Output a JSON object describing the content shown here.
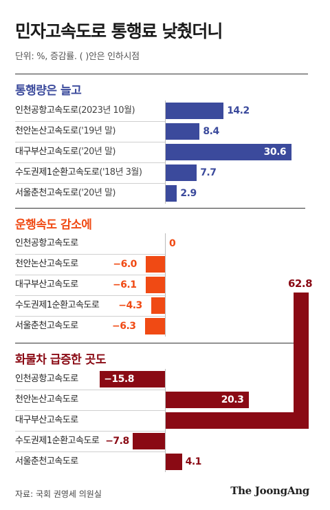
{
  "title": "민자고속도로 통행료 낮췄더니",
  "unit_note": "단위: %, 증감률. ( )안은 인하시점",
  "source": "자료: 국회 권영세 의원실",
  "logo": "The JoongAng",
  "colors": {
    "blue": "#3b4a9c",
    "orange": "#f04a14",
    "darkred": "#8a0a14"
  },
  "chart_data": [
    {
      "type": "bar",
      "title": "통행량은 늘고",
      "categories": [
        "인천공항고속도로",
        "천안논산고속도로",
        "대구부산고속도로",
        "수도권제1순환고속도로",
        "서울춘천고속도로"
      ],
      "notes": [
        "(2023년 10월)",
        "('19년 말)",
        "('20년 말)",
        "('18년 3월)",
        "('20년 말)"
      ],
      "values": [
        14.2,
        8.4,
        30.6,
        7.7,
        2.9
      ],
      "value_labels": [
        "14.2",
        "8.4",
        "30.6",
        "7.7",
        "2.9"
      ]
    },
    {
      "type": "bar",
      "title": "운행속도 감소에",
      "categories": [
        "인천공항고속도로",
        "천안논산고속도로",
        "대구부산고속도로",
        "수도권제1순환고속도로",
        "서울춘천고속도로"
      ],
      "values": [
        0,
        -6.0,
        -6.1,
        -4.3,
        -6.3
      ],
      "value_labels": [
        "0",
        "−6.0",
        "−6.1",
        "−4.3",
        "−6.3"
      ]
    },
    {
      "type": "bar",
      "title": "화물차 급증한 곳도",
      "categories": [
        "인천공항고속도로",
        "천안논산고속도로",
        "대구부산고속도로",
        "수도권제1순환고속도로",
        "서울춘천고속도로"
      ],
      "values": [
        -15.8,
        20.3,
        62.8,
        -7.8,
        4.1
      ],
      "value_labels": [
        "−15.8",
        "20.3",
        "62.8",
        "−7.8",
        "4.1"
      ]
    }
  ]
}
